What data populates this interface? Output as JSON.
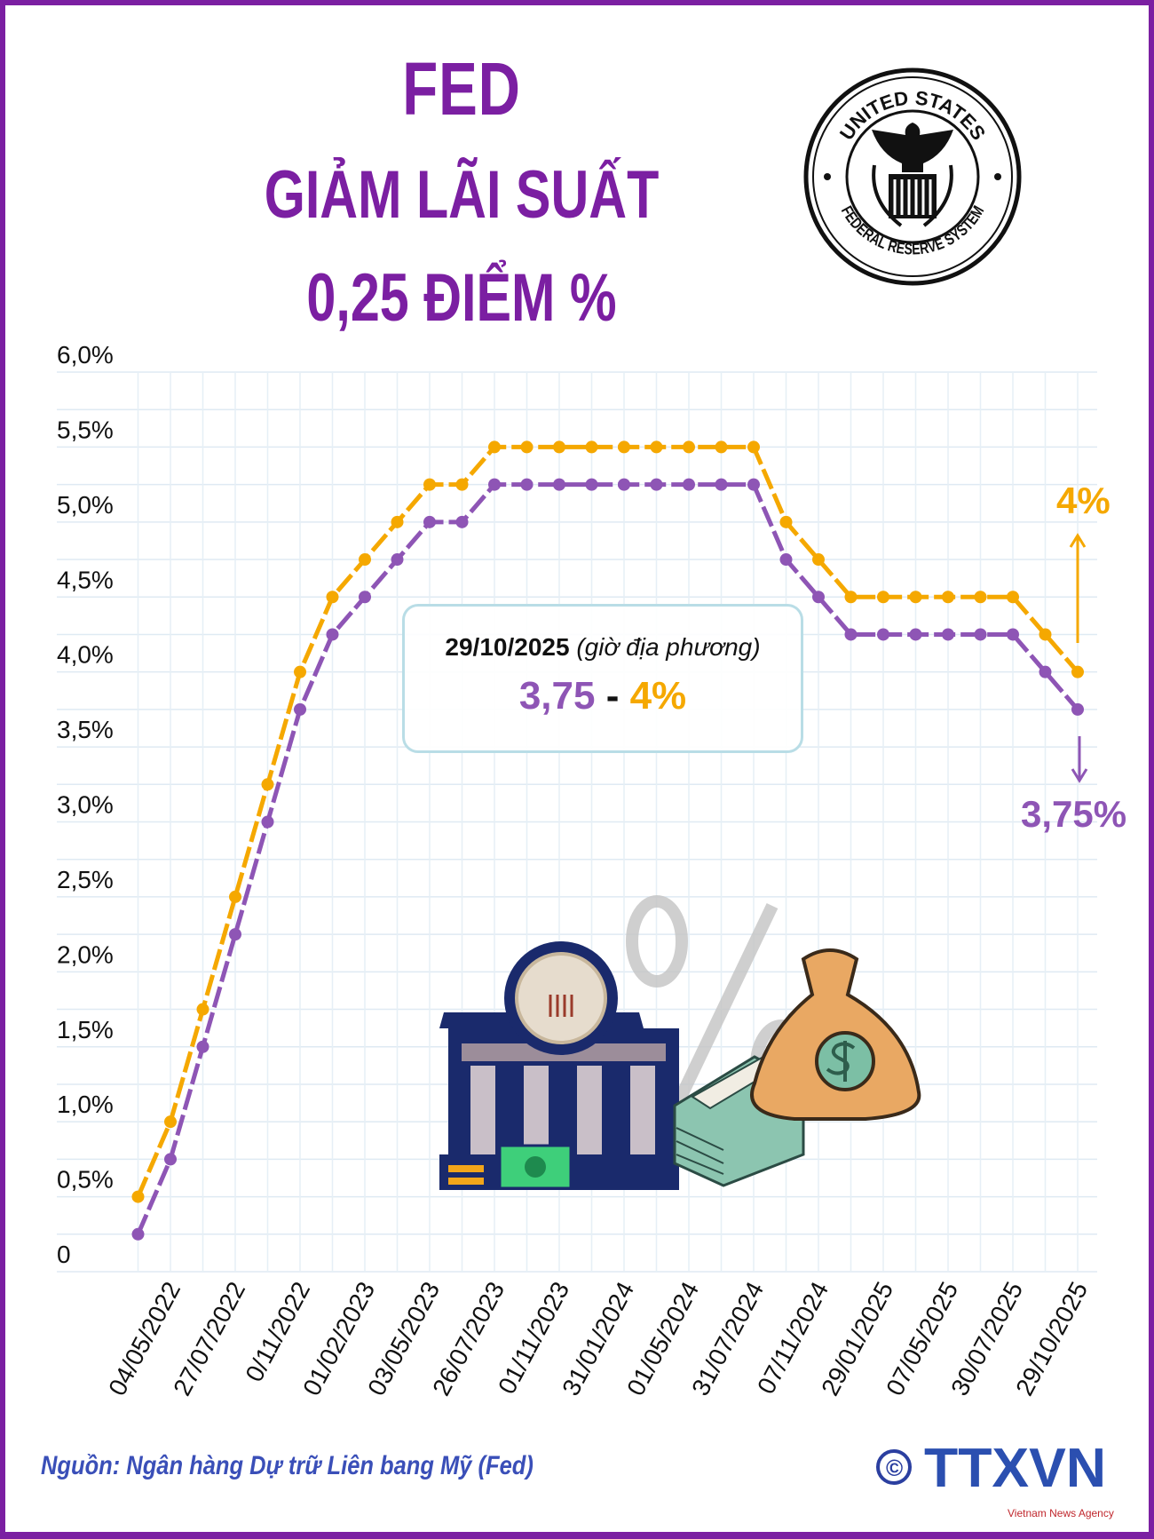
{
  "header": {
    "line1": "FED",
    "line2": "GIẢM LÃI SUẤT",
    "line3": "0,25 ĐIỂM %"
  },
  "seal": {
    "text_top": "UNITED STATES",
    "text_bottom": "FEDERAL RESERVE SYSTEM"
  },
  "callout": {
    "date": "29/10/2025",
    "note": "(giờ địa phương)",
    "low": "3,75",
    "sep": "-",
    "high": "4%"
  },
  "annotations": {
    "upper_label": "4%",
    "lower_label": "3,75%"
  },
  "footer": {
    "source": "Nguồn: Ngân hàng Dự trữ Liên bang Mỹ (Fed)",
    "copyright": "©",
    "logo_text": "TTXVN",
    "logo_sub": "Vietnam News Agency"
  },
  "colors": {
    "title": "#7b1fa2",
    "upper_series": "#f5a800",
    "lower_series": "#8e55b5",
    "source": "#3a4fb8",
    "frame": "#7b1fa2"
  },
  "chart_data": {
    "type": "line",
    "title": "",
    "xlabel": "",
    "ylabel": "",
    "ylim": [
      0,
      6.0
    ],
    "y_ticks": [
      0,
      0.5,
      1.0,
      1.5,
      2.0,
      2.5,
      3.0,
      3.5,
      4.0,
      4.5,
      5.0,
      5.5,
      6.0
    ],
    "y_tick_labels": [
      "0",
      "0,5%",
      "1,0%",
      "1,5%",
      "2,0%",
      "2,5%",
      "3,0%",
      "3,5%",
      "4,0%",
      "4,5%",
      "5,0%",
      "5,5%",
      "6,0%"
    ],
    "x_tick_labels": [
      "04/05/2022",
      "27/07/2022",
      "0/11/2022",
      "01/02/2023",
      "03/05/2023",
      "26/07/2023",
      "01/11/2023",
      "31/01/2024",
      "01/05/2024",
      "31/07/2024",
      "07/11/2024",
      "29/01/2025",
      "07/05/2025",
      "30/07/2025",
      "29/10/2025"
    ],
    "grid": true,
    "series": [
      {
        "values": [
          0.5,
          1.0,
          1.75,
          2.5,
          3.25,
          4.0,
          4.5,
          4.75,
          5.0,
          5.25,
          5.25,
          5.5,
          5.5,
          5.5,
          5.5,
          5.5,
          5.5,
          5.5,
          5.5,
          5.5,
          5.0,
          4.75,
          4.5,
          4.5,
          4.5,
          4.5,
          4.5,
          4.5,
          4.25,
          4.0
        ]
      },
      {
        "values": [
          0.25,
          0.75,
          1.5,
          2.25,
          3.0,
          3.75,
          4.25,
          4.5,
          4.75,
          5.0,
          5.0,
          5.25,
          5.25,
          5.25,
          5.25,
          5.25,
          5.25,
          5.25,
          5.25,
          5.25,
          4.75,
          4.5,
          4.25,
          4.25,
          4.25,
          4.25,
          4.25,
          4.25,
          4.0,
          3.75
        ]
      }
    ]
  }
}
